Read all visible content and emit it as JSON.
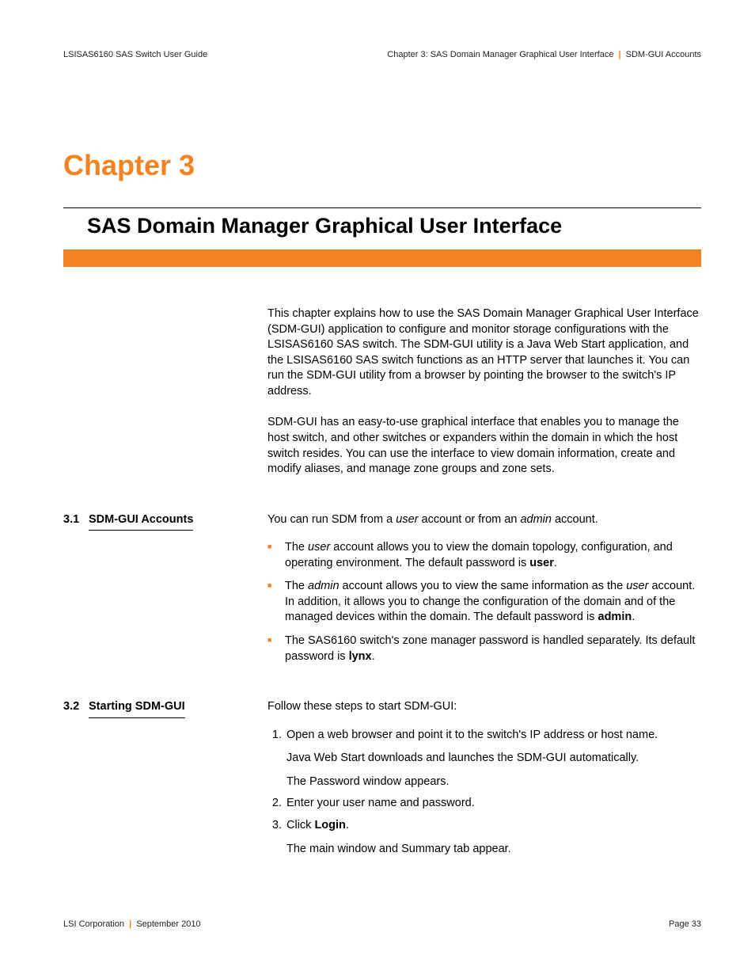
{
  "colors": {
    "accent": "#f58220",
    "text": "#000000",
    "background": "#ffffff"
  },
  "header": {
    "left": "LSISAS6160 SAS Switch User Guide",
    "right_a": "Chapter 3: SAS Domain Manager Graphical User Interface",
    "right_b": "SDM-GUI Accounts"
  },
  "chapter": {
    "label": "Chapter 3",
    "title": "SAS Domain Manager Graphical User Interface"
  },
  "intro": {
    "p1": "This chapter explains how to use the SAS Domain Manager Graphical User Interface (SDM-GUI) application to configure and monitor storage configurations with the LSISAS6160 SAS switch. The SDM-GUI utility is a Java Web Start application, and the LSISAS6160 SAS switch functions as an HTTP server that launches it. You can run the SDM-GUI utility from a browser by pointing the browser to the switch's IP address.",
    "p2": "SDM-GUI has an easy-to-use graphical interface that enables you to manage the host switch, and other switches or expanders within the domain in which the host switch resides. You can use the interface to view domain information, create and modify aliases, and manage zone groups and zone sets."
  },
  "section31": {
    "num": "3.1",
    "title": "SDM-GUI Accounts",
    "lead_a": "You can run SDM from a ",
    "lead_user": "user",
    "lead_b": " account or from an ",
    "lead_admin": "admin",
    "lead_c": " account.",
    "b1_a": "The ",
    "b1_user": "user",
    "b1_b": " account allows you to view the domain topology, configuration, and operating environment. The default password is ",
    "b1_pw": "user",
    "b1_c": ".",
    "b2_a": "The ",
    "b2_admin": "admin",
    "b2_b": " account allows you to view the same information as the ",
    "b2_user": "user",
    "b2_c": " account. In addition, it allows you to change the configuration of the domain and of the managed devices within the domain. The default password is ",
    "b2_pw": "admin",
    "b2_d": ".",
    "b3_a": "The SAS6160 switch's zone manager password is handled separately. Its default password is ",
    "b3_pw": "lynx",
    "b3_b": "."
  },
  "section32": {
    "num": "3.2",
    "title": "Starting SDM-GUI",
    "lead": "Follow these steps to start SDM-GUI:",
    "s1": "Open a web browser and point it to the switch's IP address or host name.",
    "s1_sub1": "Java Web Start downloads and launches the SDM-GUI automatically.",
    "s1_sub2": "The Password window appears.",
    "s2": "Enter your user name and password.",
    "s3_a": "Click ",
    "s3_login": "Login",
    "s3_b": ".",
    "s3_sub": "The main window and Summary tab appear."
  },
  "footer": {
    "left_a": "LSI Corporation",
    "left_b": "September 2010",
    "right": "Page 33"
  }
}
